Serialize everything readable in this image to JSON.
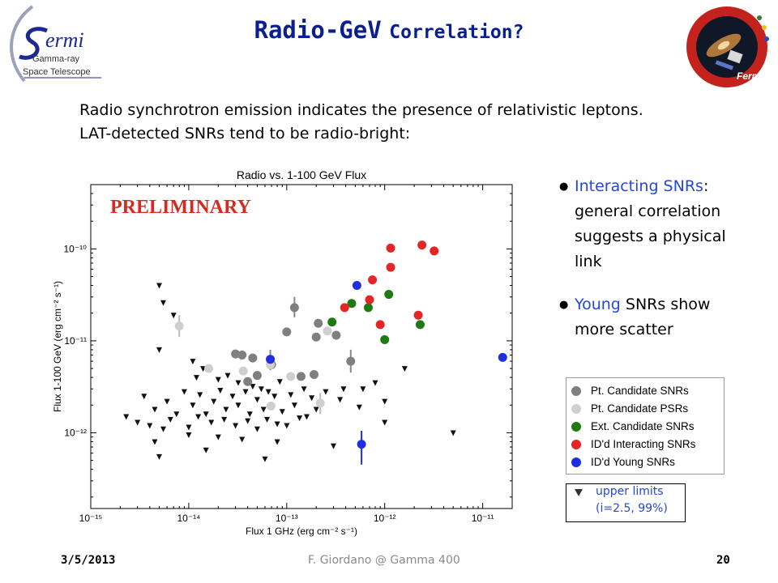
{
  "header": {
    "title_main": "Radio-GeV",
    "title_rest": "Correlation?",
    "logo": {
      "line1": "ermi",
      "line2": "Gamma-ray",
      "line3": "Space Telescope"
    },
    "badge": {
      "top_text": "Gamma-ray Space Telescope",
      "bottom_text": "Fermi"
    }
  },
  "intro": {
    "line1": "Radio synchrotron emission indicates the presence of relativistic leptons.",
    "line2": "LAT-detected SNRs tend to be radio-bright:"
  },
  "bullets": [
    {
      "highlight": "Interacting SNRs",
      "rest_lines": [
        ":",
        "general correlation",
        "suggests a physical",
        "link"
      ]
    },
    {
      "highlight": "Young",
      "rest_lines": [
        " SNRs show",
        "more scatter"
      ]
    }
  ],
  "legend": {
    "items": [
      {
        "label": "Pt. Candidate SNRs",
        "color": "#7f7f7f"
      },
      {
        "label": "Pt. Candidate PSRs",
        "color": "#cfcfcf"
      },
      {
        "label": "Ext. Candidate SNRs",
        "color": "#1f7a12"
      },
      {
        "label": "ID'd Interacting SNRs",
        "color": "#e42525"
      },
      {
        "label": "ID'd Young SNRs",
        "color": "#1d2fe0"
      }
    ],
    "upper_limits_line1": "upper limits",
    "upper_limits_line2": "(i=2.5, 99%)"
  },
  "footer": {
    "date": "3/5/2013",
    "center": "F. Giordano @ Gamma 400",
    "page": "20"
  },
  "chart_data": {
    "type": "scatter",
    "title": "Radio vs. 1-100 GeV Flux",
    "watermark": "PRELIMINARY",
    "xlabel": "Flux 1 GHz (erg cm⁻² s⁻¹)",
    "ylabel": "Flux 1-100 GeV (erg cm⁻² s⁻¹)",
    "x_scale": "log",
    "y_scale": "log",
    "xlim": [
      1e-15,
      2e-11
    ],
    "ylim": [
      1.5e-13,
      5e-10
    ],
    "x_ticks": [
      {
        "value": 1e-15,
        "label": "10⁻¹⁵"
      },
      {
        "value": 1e-14,
        "label": "10⁻¹⁴"
      },
      {
        "value": 1e-13,
        "label": "10⁻¹³"
      },
      {
        "value": 1e-12,
        "label": "10⁻¹²"
      },
      {
        "value": 1e-11,
        "label": "10⁻¹¹"
      }
    ],
    "y_ticks": [
      {
        "value": 1e-12,
        "label": "10⁻¹²"
      },
      {
        "value": 1e-11,
        "label": "10⁻¹¹"
      },
      {
        "value": 1e-10,
        "label": "10⁻¹⁰"
      }
    ],
    "grid": false,
    "series": [
      {
        "name": "Pt. Candidate SNRs",
        "color": "#7f7f7f",
        "marker": "circle",
        "points": [
          {
            "x": 3e-14,
            "y": 7.2e-12
          },
          {
            "x": 3.5e-14,
            "y": 7e-12
          },
          {
            "x": 4.5e-14,
            "y": 6.5e-12
          },
          {
            "x": 5e-14,
            "y": 4.2e-12
          },
          {
            "x": 4e-14,
            "y": 3.6e-12
          },
          {
            "x": 7e-14,
            "y": 5.5e-12
          },
          {
            "x": 1.2e-13,
            "y": 2.3e-11
          },
          {
            "x": 1e-13,
            "y": 1.25e-11
          },
          {
            "x": 1.4e-13,
            "y": 4.1e-12
          },
          {
            "x": 1.9e-13,
            "y": 4.3e-12
          },
          {
            "x": 2e-13,
            "y": 1.1e-11
          },
          {
            "x": 2.1e-13,
            "y": 1.55e-11
          },
          {
            "x": 3.2e-13,
            "y": 1.15e-11
          },
          {
            "x": 4.5e-13,
            "y": 6e-12
          }
        ]
      },
      {
        "name": "Pt. Candidate PSRs",
        "color": "#cfcfcf",
        "marker": "circle",
        "points": [
          {
            "x": 8e-15,
            "y": 1.45e-11
          },
          {
            "x": 1.6e-14,
            "y": 5e-12
          },
          {
            "x": 3.6e-14,
            "y": 4.7e-12
          },
          {
            "x": 6.8e-14,
            "y": 5.5e-12
          },
          {
            "x": 6.9e-14,
            "y": 1.95e-12
          },
          {
            "x": 1.1e-13,
            "y": 4.1e-12
          },
          {
            "x": 2.2e-13,
            "y": 2.1e-12
          },
          {
            "x": 2.6e-13,
            "y": 1.28e-11
          }
        ]
      },
      {
        "name": "Ext. Candidate SNRs",
        "color": "#1f7a12",
        "marker": "circle",
        "points": [
          {
            "x": 2.9e-13,
            "y": 1.6e-11
          },
          {
            "x": 4.6e-13,
            "y": 2.55e-11
          },
          {
            "x": 6.8e-13,
            "y": 2.3e-11
          },
          {
            "x": 1.1e-12,
            "y": 3.2e-11
          },
          {
            "x": 1e-12,
            "y": 1.03e-11
          },
          {
            "x": 2.3e-12,
            "y": 1.5e-11
          }
        ]
      },
      {
        "name": "ID'd Interacting SNRs",
        "color": "#e42525",
        "marker": "circle",
        "points": [
          {
            "x": 3.9e-13,
            "y": 2.3e-11
          },
          {
            "x": 7e-13,
            "y": 2.8e-11
          },
          {
            "x": 7.5e-13,
            "y": 4.6e-11
          },
          {
            "x": 1.15e-12,
            "y": 6.3e-11
          },
          {
            "x": 1.15e-12,
            "y": 1.02e-10
          },
          {
            "x": 2.4e-12,
            "y": 1.1e-10
          },
          {
            "x": 3.2e-12,
            "y": 9.5e-11
          },
          {
            "x": 9e-13,
            "y": 1.5e-11
          },
          {
            "x": 2.2e-12,
            "y": 1.9e-11
          }
        ]
      },
      {
        "name": "ID'd Young SNRs",
        "color": "#1d2fe0",
        "marker": "circle",
        "points": [
          {
            "x": 5.2e-13,
            "y": 4e-11
          },
          {
            "x": 6.8e-14,
            "y": 6.3e-12
          },
          {
            "x": 5.8e-13,
            "y": 7.5e-13
          },
          {
            "x": 1.6e-11,
            "y": 6.6e-12
          }
        ]
      },
      {
        "name": "upper limits",
        "color": "#111111",
        "marker": "triangle-down",
        "points": [
          {
            "x": 5e-15,
            "y": 4e-11
          },
          {
            "x": 5.5e-15,
            "y": 2.6e-11
          },
          {
            "x": 7e-15,
            "y": 1.9e-11
          },
          {
            "x": 5e-15,
            "y": 8e-12
          },
          {
            "x": 1.1e-14,
            "y": 6e-12
          },
          {
            "x": 1.4e-14,
            "y": 5e-12
          },
          {
            "x": 1.2e-14,
            "y": 4e-12
          },
          {
            "x": 2e-14,
            "y": 3.8e-12
          },
          {
            "x": 2.5e-14,
            "y": 4.2e-12
          },
          {
            "x": 3.2e-14,
            "y": 3.5e-12
          },
          {
            "x": 4.5e-14,
            "y": 3.2e-12
          },
          {
            "x": 5.5e-14,
            "y": 3e-12
          },
          {
            "x": 6.5e-14,
            "y": 2.8e-12
          },
          {
            "x": 8.5e-14,
            "y": 3.6e-12
          },
          {
            "x": 1.1e-13,
            "y": 2.6e-12
          },
          {
            "x": 1.5e-13,
            "y": 3e-12
          },
          {
            "x": 1.8e-13,
            "y": 2.4e-12
          },
          {
            "x": 2.5e-13,
            "y": 2.8e-12
          },
          {
            "x": 3.5e-13,
            "y": 2.3e-12
          },
          {
            "x": 3.8e-13,
            "y": 3e-12
          },
          {
            "x": 5.5e-13,
            "y": 1.9e-12
          },
          {
            "x": 6e-13,
            "y": 3e-12
          },
          {
            "x": 8e-13,
            "y": 3.5e-12
          },
          {
            "x": 1e-12,
            "y": 2.2e-12
          },
          {
            "x": 1.6e-12,
            "y": 5e-12
          },
          {
            "x": 3.5e-15,
            "y": 2.5e-12
          },
          {
            "x": 4.5e-15,
            "y": 1.8e-12
          },
          {
            "x": 6e-15,
            "y": 2.2e-12
          },
          {
            "x": 7.5e-15,
            "y": 1.6e-12
          },
          {
            "x": 9e-15,
            "y": 2.8e-12
          },
          {
            "x": 1.1e-14,
            "y": 2e-12
          },
          {
            "x": 1.3e-14,
            "y": 2.6e-12
          },
          {
            "x": 1.5e-14,
            "y": 1.6e-12
          },
          {
            "x": 1.8e-14,
            "y": 2.2e-12
          },
          {
            "x": 2.1e-14,
            "y": 2.9e-12
          },
          {
            "x": 2.4e-14,
            "y": 1.8e-12
          },
          {
            "x": 2.8e-14,
            "y": 2.5e-12
          },
          {
            "x": 3.2e-14,
            "y": 2e-12
          },
          {
            "x": 3.8e-14,
            "y": 2.8e-12
          },
          {
            "x": 4.2e-14,
            "y": 1.6e-12
          },
          {
            "x": 5e-14,
            "y": 2.3e-12
          },
          {
            "x": 5.8e-14,
            "y": 1.8e-12
          },
          {
            "x": 7.5e-14,
            "y": 2.5e-12
          },
          {
            "x": 9e-14,
            "y": 1.7e-12
          },
          {
            "x": 1.2e-13,
            "y": 2e-12
          },
          {
            "x": 1.6e-13,
            "y": 1.5e-12
          },
          {
            "x": 2e-13,
            "y": 1.8e-12
          },
          {
            "x": 2.3e-15,
            "y": 1.5e-12
          },
          {
            "x": 3e-15,
            "y": 1.3e-12
          },
          {
            "x": 4e-15,
            "y": 1.2e-12
          },
          {
            "x": 5.5e-15,
            "y": 1.1e-12
          },
          {
            "x": 6.5e-15,
            "y": 1.4e-12
          },
          {
            "x": 1e-14,
            "y": 1.15e-12
          },
          {
            "x": 1.25e-14,
            "y": 1.5e-12
          },
          {
            "x": 1.7e-14,
            "y": 1.3e-12
          },
          {
            "x": 2.3e-14,
            "y": 1.4e-12
          },
          {
            "x": 3e-14,
            "y": 1.2e-12
          },
          {
            "x": 4e-14,
            "y": 1.35e-12
          },
          {
            "x": 5e-14,
            "y": 1.1e-12
          },
          {
            "x": 6.3e-14,
            "y": 1.4e-12
          },
          {
            "x": 8e-14,
            "y": 1.25e-12
          },
          {
            "x": 1e-13,
            "y": 1.2e-12
          },
          {
            "x": 1.35e-13,
            "y": 1.45e-12
          },
          {
            "x": 1e-14,
            "y": 9.5e-13
          },
          {
            "x": 2e-14,
            "y": 9e-13
          },
          {
            "x": 3.5e-14,
            "y": 8.5e-13
          },
          {
            "x": 4.5e-15,
            "y": 8e-13
          },
          {
            "x": 8e-14,
            "y": 8e-13
          },
          {
            "x": 5e-15,
            "y": 5.5e-13
          },
          {
            "x": 3e-13,
            "y": 7.2e-13
          },
          {
            "x": 1e-12,
            "y": 1.3e-12
          },
          {
            "x": 5e-12,
            "y": 1e-12
          },
          {
            "x": 1.5e-14,
            "y": 6.5e-13
          },
          {
            "x": 6e-14,
            "y": 5.2e-13
          }
        ]
      }
    ],
    "error_bars": [
      {
        "x": 5.8e-13,
        "y_low": 4.5e-13,
        "y_high": 1.05e-12,
        "color": "#1d2fe0"
      },
      {
        "x": 1.2e-13,
        "y_low": 1.8e-11,
        "y_high": 3e-11,
        "color": "#888888"
      },
      {
        "x": 6.8e-14,
        "y_low": 4.8e-12,
        "y_high": 8e-12,
        "color": "#888888"
      },
      {
        "x": 4.5e-13,
        "y_low": 4.5e-12,
        "y_high": 8e-12,
        "color": "#888888"
      },
      {
        "x": 8e-15,
        "y_low": 1.1e-11,
        "y_high": 1.9e-11,
        "color": "#bbbbbb"
      },
      {
        "x": 2.2e-13,
        "y_low": 1.6e-12,
        "y_high": 2.7e-12,
        "color": "#bbbbbb"
      }
    ]
  }
}
